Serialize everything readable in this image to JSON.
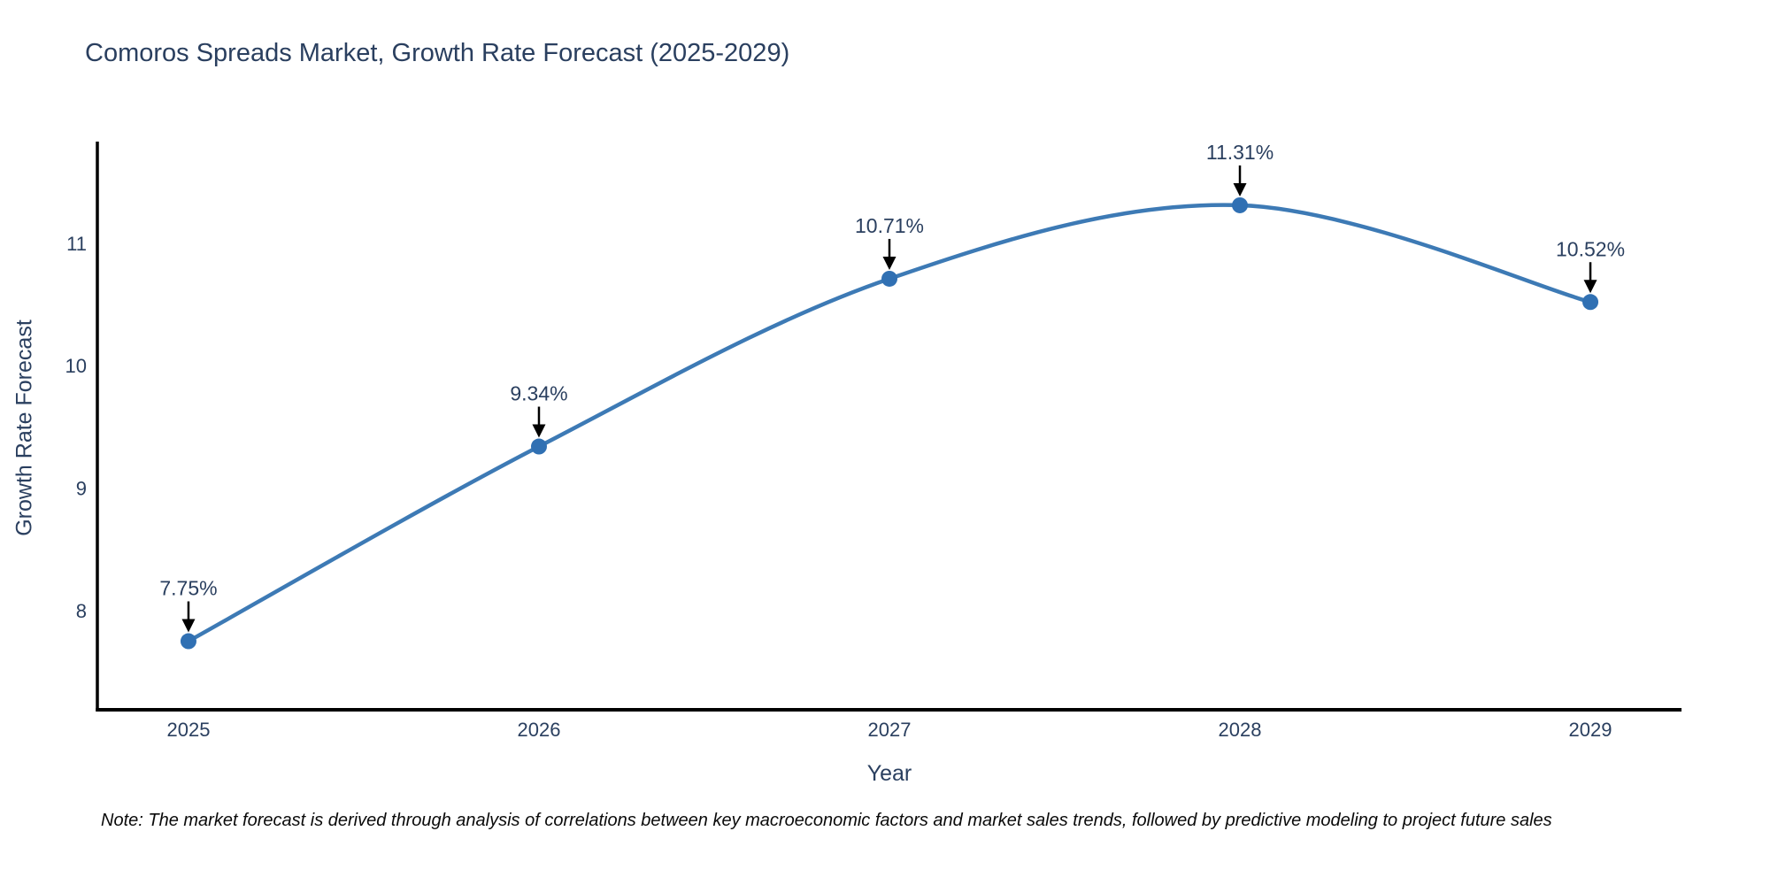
{
  "header": {
    "title": "Comoros Spreads Market, Growth Rate Forecast (2025-2029)"
  },
  "chart_data": {
    "type": "line",
    "title": "Comoros Spreads Market, Growth Rate Forecast (2025-2029)",
    "xlabel": "Year",
    "ylabel": "Growth Rate Forecast",
    "x": [
      2025,
      2026,
      2027,
      2028,
      2029
    ],
    "series": [
      {
        "name": "Growth Rate Forecast",
        "values": [
          7.75,
          9.34,
          10.71,
          11.31,
          10.52
        ],
        "point_labels": [
          "7.75%",
          "9.34%",
          "10.71%",
          "11.31%",
          "10.52%"
        ]
      }
    ],
    "x_ticks": [
      "2025",
      "2026",
      "2027",
      "2028",
      "2029"
    ],
    "y_ticks": [
      8,
      9,
      10,
      11
    ],
    "x_range": [
      2024.74,
      2029.26
    ],
    "y_range": [
      7.19,
      11.83
    ],
    "line_shape": "spline",
    "grid": false,
    "legend": "none",
    "colors": {
      "line": "#3d7ab5",
      "marker": "#3070b3",
      "axis": "#000000",
      "chart_text": "#2a3f5f",
      "annotation_text": "#2a3f5f",
      "annotation_arrow": "#000000",
      "background": "#ffffff"
    }
  },
  "footer": {
    "note": "Note: The market forecast is derived through analysis of correlations between key macroeconomic factors and market sales trends, followed by predictive modeling to project future sales"
  }
}
